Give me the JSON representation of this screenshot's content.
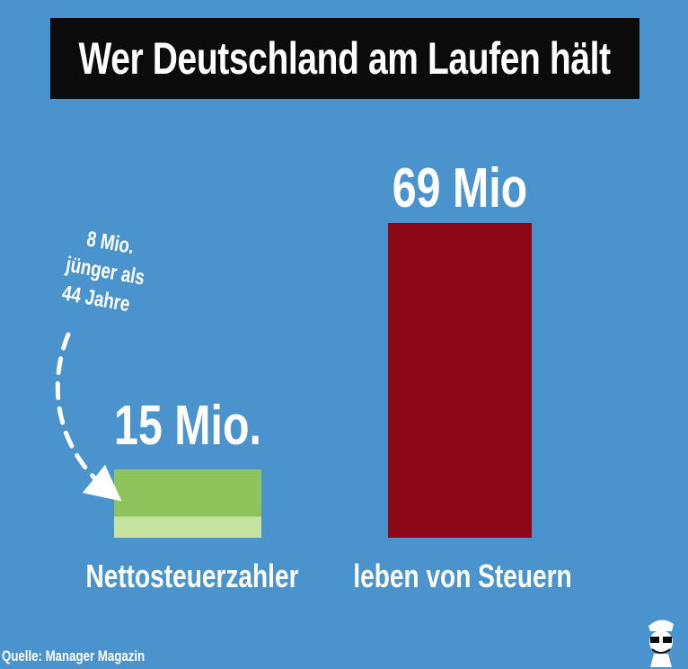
{
  "title": "Wer Deutschland am Laufen hält",
  "chart_data": {
    "type": "bar",
    "categories": [
      "Nettosteuerzahler",
      "leben von Steuern"
    ],
    "series": [
      {
        "values": [
          15,
          69
        ]
      }
    ],
    "value_labels": [
      "15 Mio.",
      "69 Mio"
    ],
    "sub_segment": {
      "category": "Nettosteuerzahler",
      "value": 8
    },
    "annotation": [
      "8 Mio.",
      "jünger als",
      "44 Jahre"
    ],
    "colors": {
      "left_bar_top": "#8fc45c",
      "left_bar_bottom": "#c5e2a0",
      "right_bar": "#8c0718"
    },
    "title": "Wer Deutschland am Laufen hält",
    "xlabel": "",
    "ylabel": "",
    "grid": false
  },
  "source": "Quelle: Manager Magazin",
  "colors": {
    "background": "#4a93cd",
    "title_bg": "#0b0b0b",
    "text": "#ffffff"
  },
  "logo_icon": "cartoon-face-icon"
}
